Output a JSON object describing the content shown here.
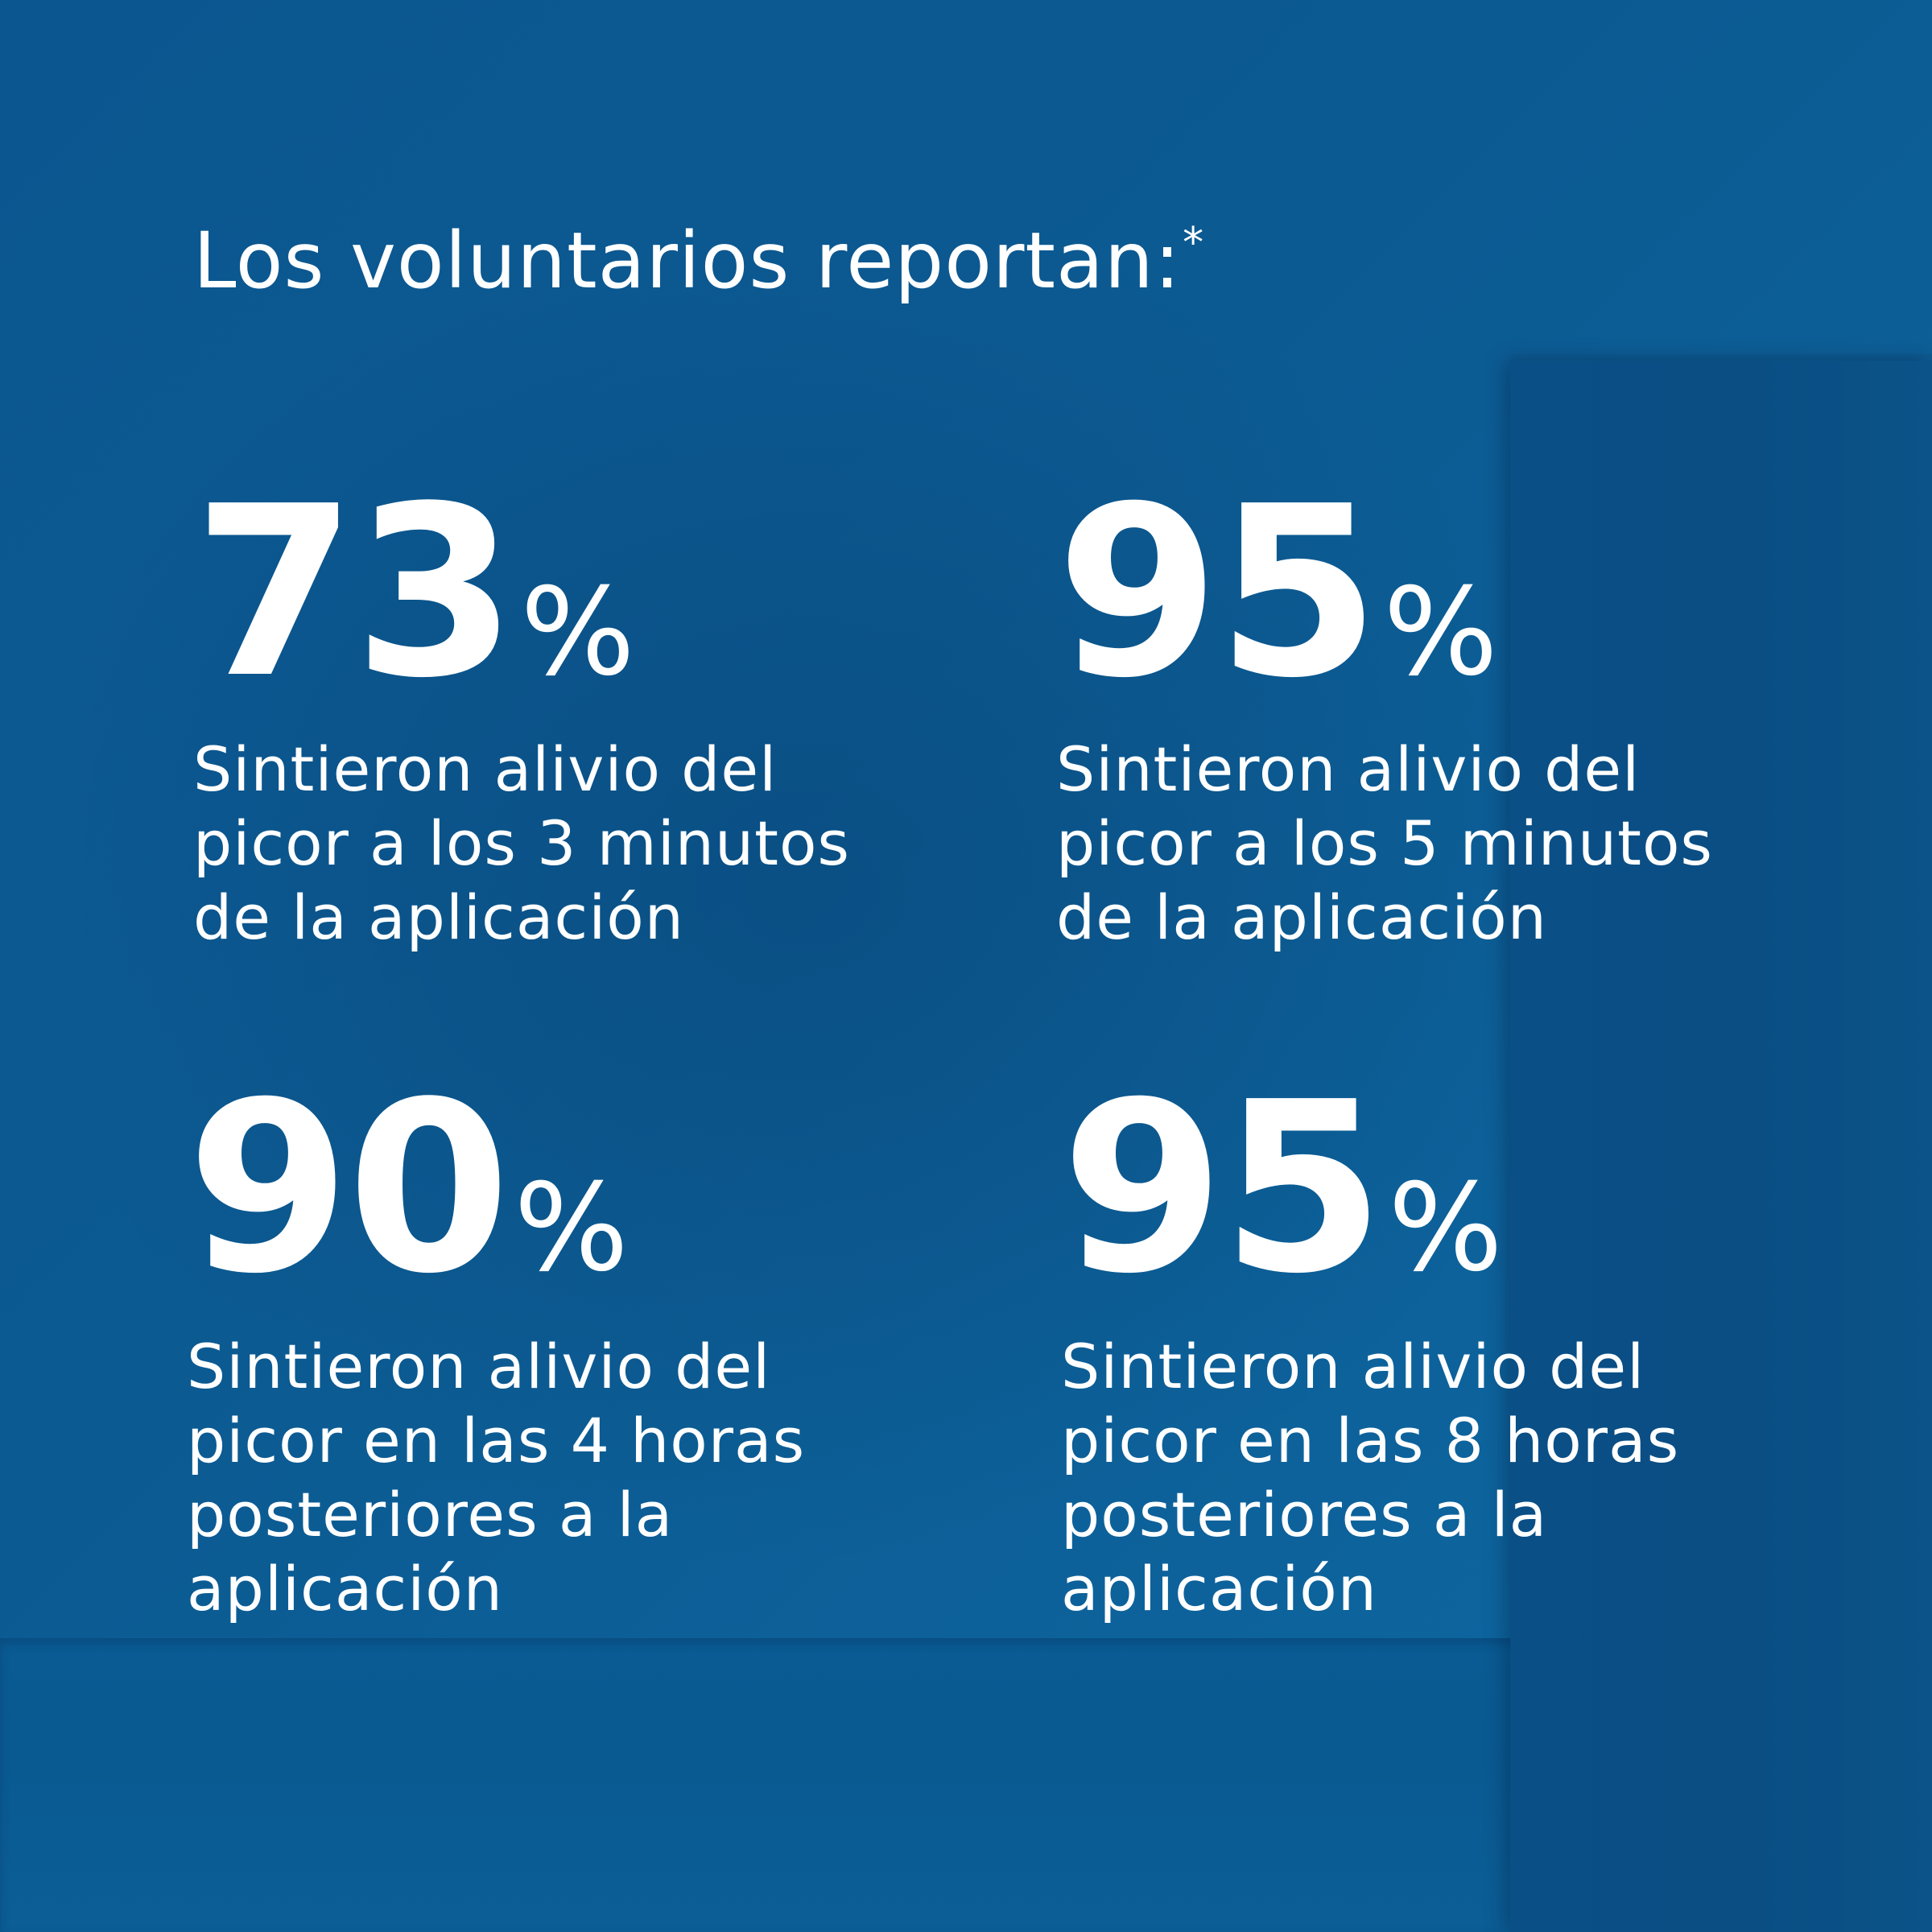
{
  "headline": {
    "text": "Los voluntarios reportan:",
    "asterisk": "*"
  },
  "stats": [
    {
      "number": "73",
      "percent_sign": "%",
      "lines": [
        "Sintieron alivio del",
        "picor a los 3 minutos",
        "de la aplicación"
      ]
    },
    {
      "number": "95",
      "percent_sign": "%",
      "lines": [
        "Sintieron alivio del",
        "picor a los 5 minutos",
        "de la aplicación"
      ]
    },
    {
      "number": "90",
      "percent_sign": "%",
      "lines": [
        "Sintieron alivio del",
        "picor en las 4 horas",
        "posteriores a la",
        "aplicación"
      ]
    },
    {
      "number": "95",
      "percent_sign": "%",
      "lines": [
        "Sintieron alivio del",
        "picor en las 8 horas",
        "posteriores a la",
        "aplicación"
      ]
    }
  ],
  "colors": {
    "background": "#0c5a92",
    "text": "#ffffff",
    "pedestal": "#0a4f86"
  }
}
